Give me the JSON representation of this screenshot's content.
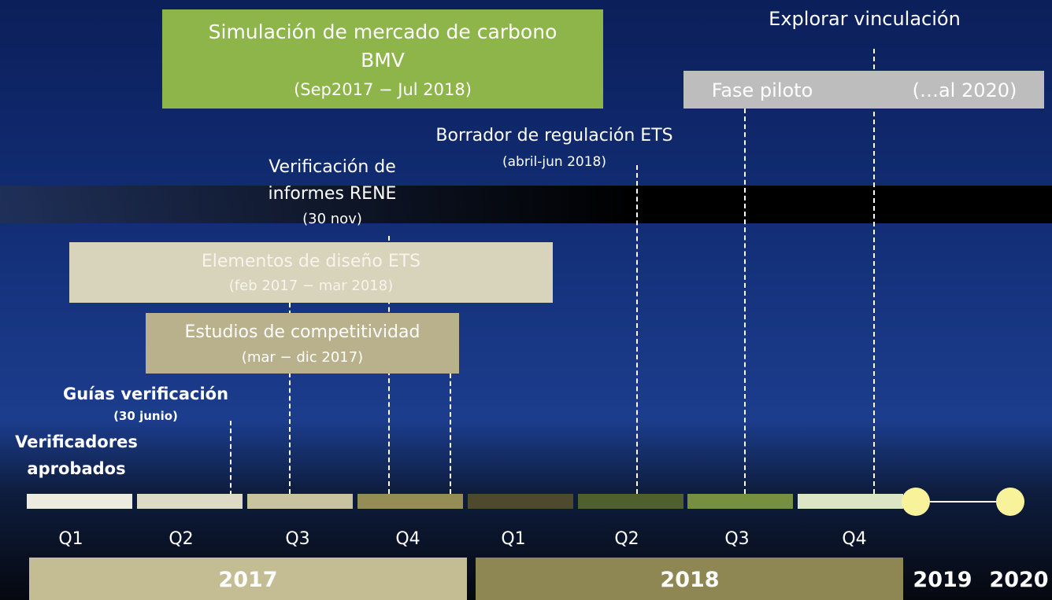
{
  "boxes": [
    {
      "lines": [
        "Simulación de mercado de carbono",
        "BMV",
        "(Sep2017 − Jul 2018)"
      ]
    },
    {
      "lines": [
        "Fase piloto",
        "(…al 2020)"
      ]
    },
    {
      "lines": [
        "Elementos de diseño ETS",
        "(feb 2017 − mar 2018)"
      ]
    },
    {
      "lines": [
        "Estudios de competitividad",
        "(mar − dic 2017)"
      ]
    }
  ],
  "annotations": [
    {
      "lines": [
        "Explorar vinculación"
      ]
    },
    {
      "lines": [
        "Borrador de regulación ETS",
        "(abril-jun 2018)"
      ]
    },
    {
      "lines": [
        "Verificación de",
        "informes RENE",
        "(30 nov)"
      ]
    },
    {
      "lines": [
        "Guías verificación",
        "(30 junio)"
      ]
    },
    {
      "lines": [
        "Verificadores",
        "aprobados"
      ]
    }
  ],
  "quarters": [
    "Q1",
    "Q2",
    "Q3",
    "Q4",
    "Q1",
    "Q2",
    "Q3",
    "Q4"
  ],
  "years": [
    "2017",
    "2018",
    "2019",
    "2020"
  ]
}
